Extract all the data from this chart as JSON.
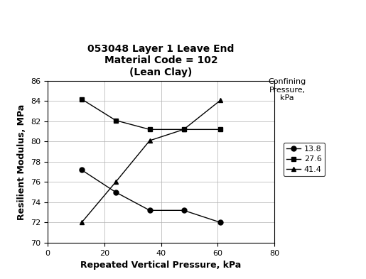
{
  "title": "053048 Layer 1 Leave End\nMaterial Code = 102\n(Lean Clay)",
  "xlabel": "Repeated Vertical Pressure, kPa",
  "ylabel": "Resilient Modulus, MPa",
  "legend_title": "Confining\nPressure,\nkPa",
  "xlim": [
    0,
    80
  ],
  "ylim": [
    70,
    86
  ],
  "xticks": [
    0,
    20,
    40,
    60,
    80
  ],
  "yticks": [
    70,
    72,
    74,
    76,
    78,
    80,
    82,
    84,
    86
  ],
  "series": [
    {
      "label": "13.8",
      "x": [
        12,
        24,
        36,
        48,
        61
      ],
      "y": [
        77.2,
        75.0,
        73.2,
        73.2,
        72.0
      ],
      "color": "#000000",
      "marker": "o",
      "linestyle": "-"
    },
    {
      "label": "27.6",
      "x": [
        12,
        24,
        36,
        48,
        61
      ],
      "y": [
        84.2,
        82.1,
        81.2,
        81.2,
        81.2
      ],
      "color": "#000000",
      "marker": "s",
      "linestyle": "-"
    },
    {
      "label": "41.4",
      "x": [
        12,
        24,
        36,
        48,
        61
      ],
      "y": [
        72.0,
        76.0,
        80.1,
        81.2,
        84.1
      ],
      "color": "#000000",
      "marker": "^",
      "linestyle": "-"
    }
  ],
  "bg_color": "#ffffff",
  "plot_bg_color": "#ffffff",
  "title_fontsize": 10,
  "axis_label_fontsize": 9,
  "tick_fontsize": 8,
  "legend_fontsize": 8,
  "legend_title_fontsize": 8
}
